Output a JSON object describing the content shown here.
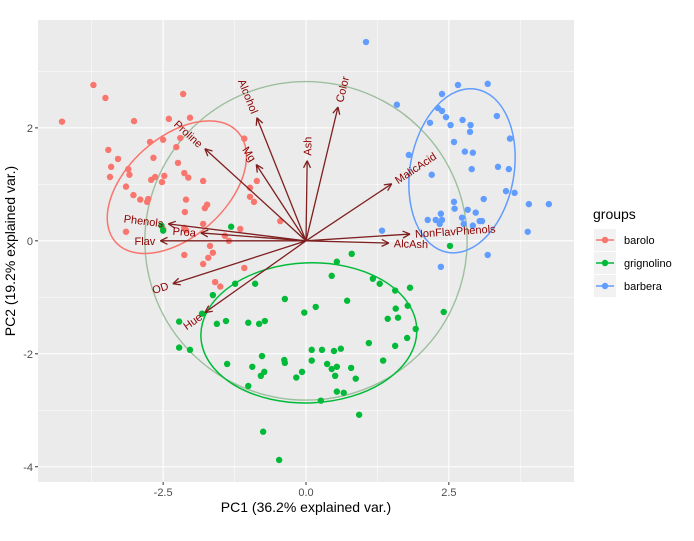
{
  "chart_data": {
    "type": "scatter",
    "xlabel": "PC1 (36.2% explained var.)",
    "ylabel": "PC2 (19.2% explained var.)",
    "xlim": [
      -4.69,
      4.69
    ],
    "ylim": [
      -4.27,
      3.91
    ],
    "x_ticks": [
      -2.5,
      0,
      2.5
    ],
    "x_tick_labels": [
      "-2.5",
      "0.0",
      "2.5"
    ],
    "y_ticks": [
      -4,
      -2,
      0,
      2
    ],
    "y_tick_labels": [
      "-4",
      "-2",
      "0",
      "2"
    ],
    "grid": true,
    "legend": {
      "title": "groups",
      "placement": "right"
    },
    "unit_circle_radius": 2.82,
    "colors": {
      "panel": "#EBEBEB",
      "grid": "#FFFFFF",
      "arrow": "#7F1F1F",
      "arrow_label": "#8B0000",
      "circle": "#9DBF9E"
    },
    "series": [
      {
        "name": "barolo",
        "color": "#F8766D",
        "ellipse": {
          "cx": -2.26,
          "cy": 0.95,
          "a": 1.44,
          "b": 0.88,
          "angle_deg": -42
        },
        "points": [
          [
            -4.27,
            2.11
          ],
          [
            -3.72,
            2.76
          ],
          [
            -3.51,
            2.53
          ],
          [
            -3.01,
            2.12
          ],
          [
            -3.46,
            1.61
          ],
          [
            -3.41,
            1.31
          ],
          [
            -3.43,
            1.13
          ],
          [
            -3.29,
            1.45
          ],
          [
            -3.11,
            1.27
          ],
          [
            -3.15,
            0.96
          ],
          [
            -3.09,
            1.17
          ],
          [
            -3.02,
            0.81
          ],
          [
            -2.73,
            1.75
          ],
          [
            -2.67,
            1.47
          ],
          [
            -2.71,
            1.08
          ],
          [
            -2.64,
            1.13
          ],
          [
            -2.48,
            1.15
          ],
          [
            -2.5,
            1.79
          ],
          [
            -2.4,
            2.16
          ],
          [
            -2.27,
            1.66
          ],
          [
            -2.2,
            1.82
          ],
          [
            -2.15,
            2.6
          ],
          [
            -2.24,
            1.38
          ],
          [
            -2.13,
            1.2
          ],
          [
            -2.1,
            0.73
          ],
          [
            -2.12,
            0.51
          ],
          [
            -2.13,
            0.23
          ],
          [
            -1.8,
            0.3
          ],
          [
            -1.68,
            -0.09
          ],
          [
            -1.63,
            -0.21
          ],
          [
            -1.42,
            0.09
          ],
          [
            -0.91,
            0.69
          ],
          [
            -0.98,
            0.78
          ],
          [
            -1.15,
            0.21
          ],
          [
            -1.35,
            0.0
          ],
          [
            -1.08,
            -0.48
          ],
          [
            -1.59,
            -0.73
          ],
          [
            -1.8,
            1.06
          ],
          [
            -1.73,
            0.64
          ],
          [
            -1.77,
            0.58
          ],
          [
            -2.1,
            0.19
          ],
          [
            -2.03,
            2.18
          ],
          [
            -2.52,
            1.04
          ],
          [
            -2.9,
            0.73
          ],
          [
            -2.78,
            0.69
          ],
          [
            -3.15,
            0.16
          ],
          [
            -2.5,
            0.21
          ],
          [
            -1.08,
            1.81
          ],
          [
            -0.98,
            0.94
          ],
          [
            -0.86,
            1.06
          ],
          [
            -2.06,
            1.12
          ],
          [
            -2.76,
            0.74
          ],
          [
            -0.45,
            0.35
          ],
          [
            -2.13,
            -0.25
          ],
          [
            -1.8,
            -0.41
          ],
          [
            -1.5,
            -0.81
          ],
          [
            -1.71,
            -0.3
          ]
        ]
      },
      {
        "name": "grignolino",
        "color": "#00BA38",
        "ellipse": {
          "cx": 0.05,
          "cy": -1.63,
          "a": 1.89,
          "b": 1.24,
          "angle_deg": -2
        },
        "points": [
          [
            0.8,
            -0.23
          ],
          [
            0.54,
            -0.37
          ],
          [
            0.45,
            -0.62
          ],
          [
            1.17,
            -0.67
          ],
          [
            1.29,
            -0.76
          ],
          [
            1.56,
            -0.88
          ],
          [
            1.82,
            -0.83
          ],
          [
            -0.37,
            -1.03
          ],
          [
            0.72,
            -1.06
          ],
          [
            0.17,
            -1.17
          ],
          [
            -0.03,
            -1.27
          ],
          [
            1.78,
            -1.15
          ],
          [
            1.57,
            -1.2
          ],
          [
            2.41,
            -1.26
          ],
          [
            1.43,
            -1.38
          ],
          [
            1.61,
            -1.36
          ],
          [
            1.92,
            -1.56
          ],
          [
            1.77,
            -1.72
          ],
          [
            1.56,
            -1.86
          ],
          [
            1.1,
            -1.81
          ],
          [
            0.61,
            -1.91
          ],
          [
            0.49,
            -1.95
          ],
          [
            0.28,
            -1.93
          ],
          [
            0.1,
            -1.93
          ],
          [
            -1.56,
            -1.47
          ],
          [
            -1.4,
            -1.42
          ],
          [
            -1.01,
            -1.45
          ],
          [
            -0.82,
            -1.47
          ],
          [
            -0.72,
            -1.42
          ],
          [
            -2.22,
            -1.43
          ],
          [
            -2.22,
            -1.89
          ],
          [
            -2.03,
            -1.93
          ],
          [
            -1.82,
            -1.29
          ],
          [
            -1.63,
            -0.96
          ],
          [
            -1.24,
            -0.76
          ],
          [
            -0.89,
            -0.76
          ],
          [
            -0.77,
            -2.04
          ],
          [
            -1.38,
            -2.18
          ],
          [
            -0.94,
            -2.23
          ],
          [
            -0.38,
            -2.11
          ],
          [
            -0.37,
            -2.16
          ],
          [
            -0.07,
            -2.32
          ],
          [
            -0.17,
            -2.42
          ],
          [
            -0.73,
            -2.32
          ],
          [
            -0.79,
            -2.39
          ],
          [
            0.1,
            -2.12
          ],
          [
            0.37,
            -2.18
          ],
          [
            0.45,
            -2.27
          ],
          [
            0.54,
            -2.23
          ],
          [
            0.51,
            -2.39
          ],
          [
            0.79,
            -2.25
          ],
          [
            0.87,
            -2.44
          ],
          [
            1.35,
            -2.12
          ],
          [
            0.54,
            -2.67
          ],
          [
            0.66,
            -2.69
          ],
          [
            0.26,
            -2.83
          ],
          [
            -1.01,
            -2.57
          ],
          [
            0.93,
            -3.08
          ],
          [
            -0.75,
            -3.38
          ],
          [
            -0.47,
            -3.88
          ],
          [
            2.52,
            -0.09
          ],
          [
            -2.53,
            0.27
          ],
          [
            -2.5,
            0.18
          ],
          [
            -1.31,
            0.25
          ]
        ]
      },
      {
        "name": "barbera",
        "color": "#619CFF",
        "ellipse": {
          "cx": 2.73,
          "cy": 1.24,
          "a": 1.45,
          "b": 0.92,
          "angle_deg": -80
        },
        "points": [
          [
            1.05,
            3.52
          ],
          [
            2.66,
            2.76
          ],
          [
            3.18,
            2.78
          ],
          [
            1.59,
            2.41
          ],
          [
            2.38,
            2.6
          ],
          [
            2.31,
            2.35
          ],
          [
            2.38,
            2.3
          ],
          [
            2.45,
            2.19
          ],
          [
            2.17,
            2.09
          ],
          [
            2.74,
            2.14
          ],
          [
            2.88,
            2.05
          ],
          [
            2.53,
            2.05
          ],
          [
            2.87,
            1.93
          ],
          [
            3.34,
            2.21
          ],
          [
            3.57,
            1.81
          ],
          [
            2.59,
            1.75
          ],
          [
            2.78,
            1.58
          ],
          [
            2.92,
            1.56
          ],
          [
            1.8,
            1.52
          ],
          [
            2.9,
            1.27
          ],
          [
            3.36,
            1.31
          ],
          [
            3.55,
            1.27
          ],
          [
            2.2,
            1.17
          ],
          [
            3.5,
            0.88
          ],
          [
            3.65,
            0.85
          ],
          [
            3.11,
            0.74
          ],
          [
            2.59,
            0.69
          ],
          [
            2.6,
            0.57
          ],
          [
            2.83,
            0.55
          ],
          [
            2.97,
            0.5
          ],
          [
            3.9,
            0.65
          ],
          [
            4.25,
            0.65
          ],
          [
            2.36,
            0.48
          ],
          [
            2.13,
            0.37
          ],
          [
            2.27,
            0.37
          ],
          [
            2.38,
            0.37
          ],
          [
            2.34,
            0.3
          ],
          [
            2.73,
            0.41
          ],
          [
            3.04,
            0.35
          ],
          [
            3.08,
            0.35
          ],
          [
            2.76,
            0.3
          ],
          [
            2.92,
            0.27
          ],
          [
            3.88,
            0.16
          ],
          [
            1.33,
            0.18
          ],
          [
            3.18,
            -0.25
          ],
          [
            2.36,
            -0.46
          ]
        ]
      }
    ],
    "loadings": [
      {
        "name": "Alcohol",
        "x": -0.86,
        "y": 2.18
      },
      {
        "name": "Proline",
        "x": -1.77,
        "y": 1.63
      },
      {
        "name": "Mg",
        "x": -0.87,
        "y": 1.35
      },
      {
        "name": "Ash",
        "x": 0.02,
        "y": 1.42
      },
      {
        "name": "Color",
        "x": 0.56,
        "y": 2.37
      },
      {
        "name": "MalicAcid",
        "x": 1.5,
        "y": 1.01
      },
      {
        "name": "NonFlavPhenols",
        "x": 1.82,
        "y": 0.12
      },
      {
        "name": "AlcAsh",
        "x": 1.45,
        "y": -0.04
      },
      {
        "name": "Phenols",
        "x": -2.41,
        "y": 0.3
      },
      {
        "name": "Proa",
        "x": -1.84,
        "y": 0.14
      },
      {
        "name": "Flav",
        "x": -2.55,
        "y": 0.0
      },
      {
        "name": "OD",
        "x": -2.33,
        "y": -0.76
      },
      {
        "name": "Hue",
        "x": -1.77,
        "y": -1.27
      }
    ]
  }
}
